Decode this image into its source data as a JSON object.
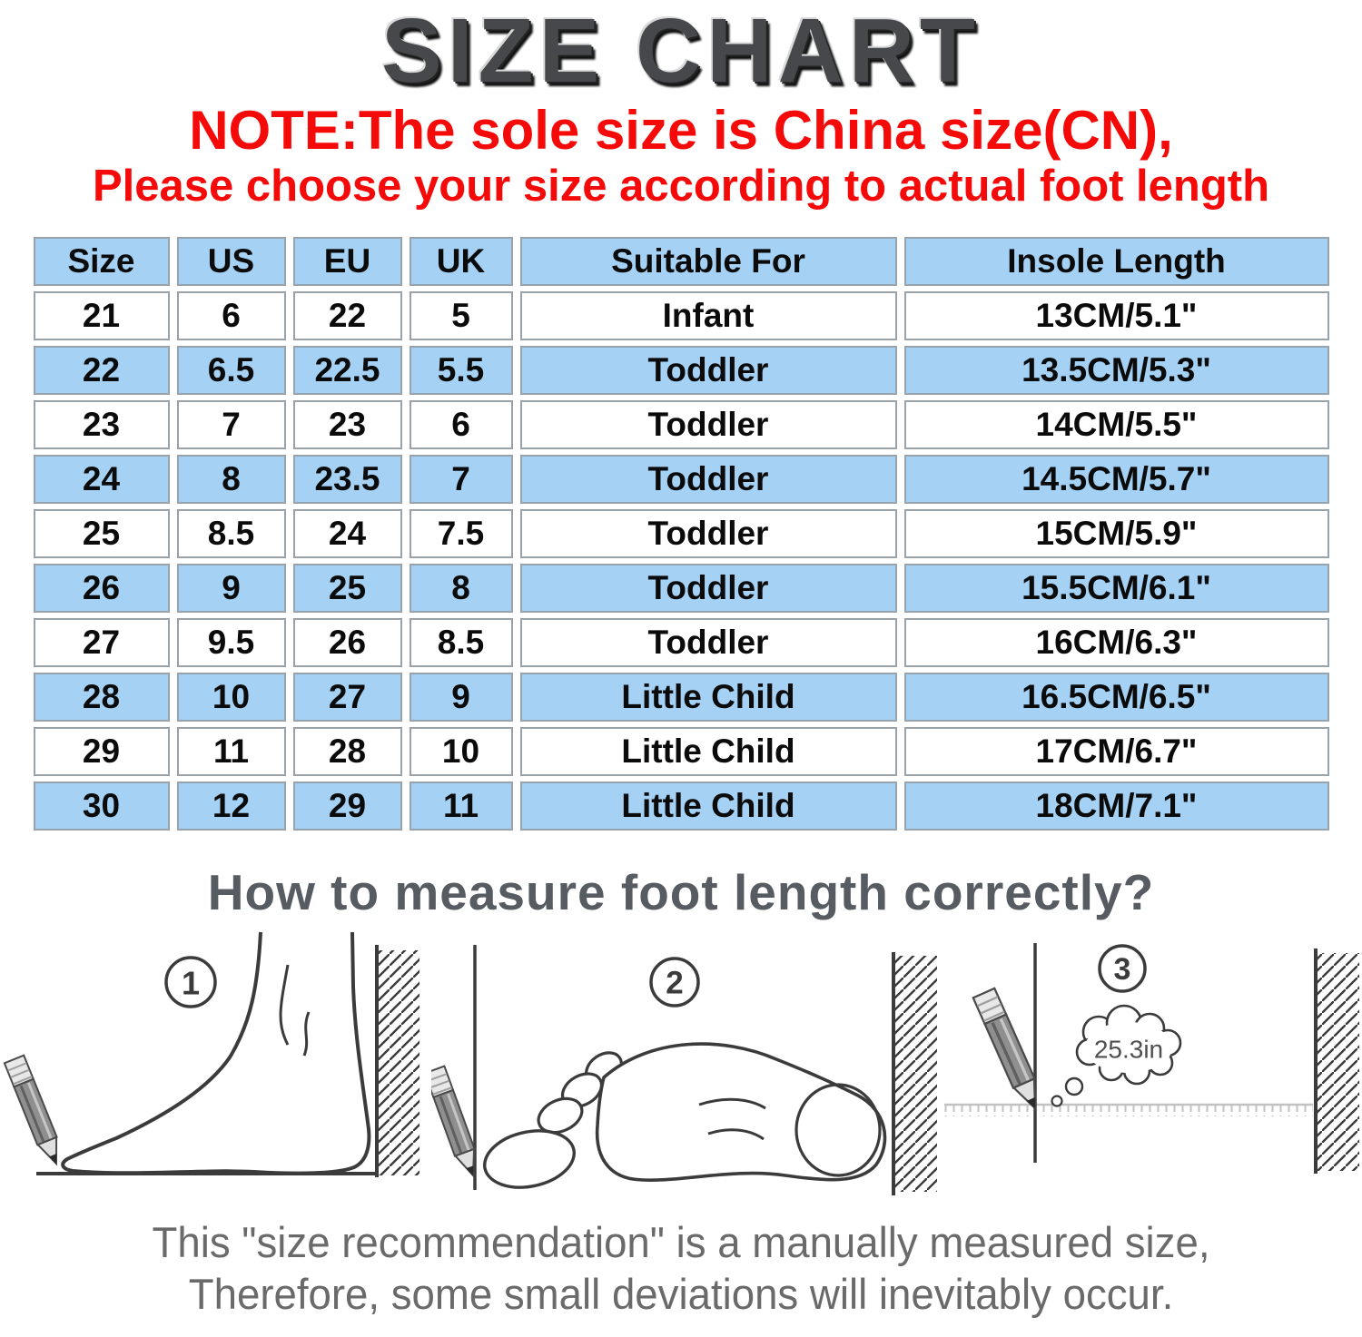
{
  "title": "SIZE CHART",
  "note": {
    "line1": "NOTE:The sole size is China size(CN),",
    "line2": "Please choose your size according to actual foot length"
  },
  "table": {
    "headers": [
      "Size",
      "US",
      "EU",
      "UK",
      "Suitable For",
      "Insole Length"
    ],
    "rows": [
      [
        "21",
        "6",
        "22",
        "5",
        "Infant",
        "13CM/5.1\""
      ],
      [
        "22",
        "6.5",
        "22.5",
        "5.5",
        "Toddler",
        "13.5CM/5.3\""
      ],
      [
        "23",
        "7",
        "23",
        "6",
        "Toddler",
        "14CM/5.5\""
      ],
      [
        "24",
        "8",
        "23.5",
        "7",
        "Toddler",
        "14.5CM/5.7\""
      ],
      [
        "25",
        "8.5",
        "24",
        "7.5",
        "Toddler",
        "15CM/5.9\""
      ],
      [
        "26",
        "9",
        "25",
        "8",
        "Toddler",
        "15.5CM/6.1\""
      ],
      [
        "27",
        "9.5",
        "26",
        "8.5",
        "Toddler",
        "16CM/6.3\""
      ],
      [
        "28",
        "10",
        "27",
        "9",
        "Little Child",
        "16.5CM/6.5\""
      ],
      [
        "29",
        "11",
        "28",
        "10",
        "Little Child",
        "17CM/6.7\""
      ],
      [
        "30",
        "12",
        "29",
        "11",
        "Little Child",
        "18CM/7.1\""
      ]
    ]
  },
  "measure": {
    "heading": "How to measure foot length correctly?",
    "steps": [
      "1",
      "2",
      "3"
    ],
    "bubble_text": "25.3in"
  },
  "disclaimer": {
    "line1": "This \"size recommendation\" is a manually measured size,",
    "line2": "Therefore, some small deviations will inevitably occur."
  },
  "colors": {
    "row_blue": "#a5d1f5",
    "note_red": "#f50a0a",
    "title_gray": "#46484b",
    "heading_gray": "#575c62",
    "disclaimer_gray": "#6a6a6a",
    "table_border": "#98a2aa",
    "line_art": "#3b3b3b"
  },
  "chart_data": {
    "type": "table",
    "title": "SIZE CHART",
    "columns": [
      "Size",
      "US",
      "EU",
      "UK",
      "Suitable For",
      "Insole Length"
    ],
    "rows": [
      [
        "21",
        "6",
        "22",
        "5",
        "Infant",
        "13CM/5.1\""
      ],
      [
        "22",
        "6.5",
        "22.5",
        "5.5",
        "Toddler",
        "13.5CM/5.3\""
      ],
      [
        "23",
        "7",
        "23",
        "6",
        "Toddler",
        "14CM/5.5\""
      ],
      [
        "24",
        "8",
        "23.5",
        "7",
        "Toddler",
        "14.5CM/5.7\""
      ],
      [
        "25",
        "8.5",
        "24",
        "7.5",
        "Toddler",
        "15CM/5.9\""
      ],
      [
        "26",
        "9",
        "25",
        "8",
        "Toddler",
        "15.5CM/6.1\""
      ],
      [
        "27",
        "9.5",
        "26",
        "8.5",
        "Toddler",
        "16CM/6.3\""
      ],
      [
        "28",
        "10",
        "27",
        "9",
        "Little Child",
        "16.5CM/6.5\""
      ],
      [
        "29",
        "11",
        "28",
        "10",
        "Little Child",
        "17CM/6.7\""
      ],
      [
        "30",
        "12",
        "29",
        "11",
        "Little Child",
        "18CM/7.1\""
      ]
    ]
  }
}
